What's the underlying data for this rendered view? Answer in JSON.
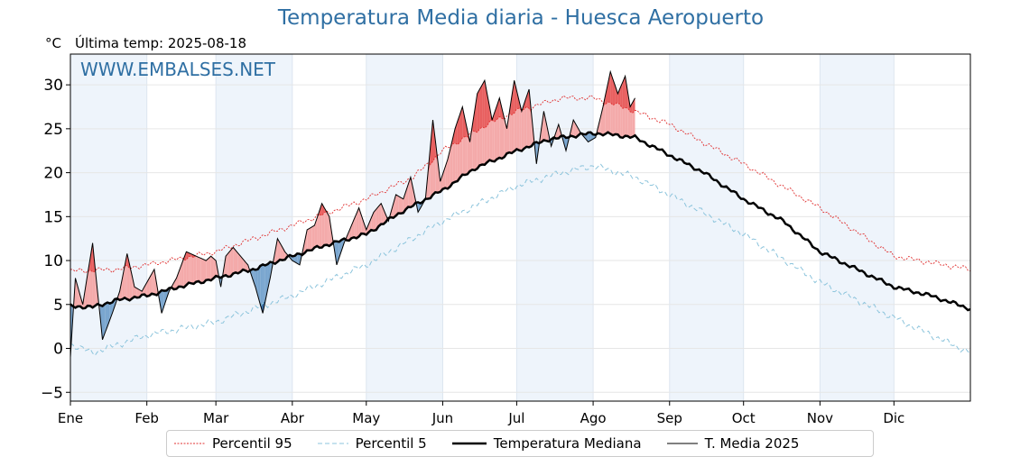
{
  "title": "Temperatura Media diaria - Huesca Aeropuerto",
  "unit": "°C",
  "subtitle": "Última temp: 2025-08-18",
  "watermark": "WWW.EMBALSES.NET",
  "legend": {
    "p95": "Percentil 95",
    "p5": "Percentil 5",
    "median": "Temperatura Mediana",
    "current": "T. Media 2025"
  },
  "colors": {
    "title": "#2f6fa3",
    "p95": "#e03030",
    "p5": "#8cc4dc",
    "median": "#000000",
    "current": "#000000",
    "above_fill": "#f4aaaa",
    "above_p95_fill": "#e86060",
    "below_fill": "#7aa6cf",
    "below_p5_fill": "#3a6ea5",
    "month_band": "#eef4fb"
  },
  "chart_data": {
    "type": "line",
    "ylim": [
      -6,
      33.5
    ],
    "yticks": [
      -5,
      0,
      5,
      10,
      15,
      20,
      25,
      30
    ],
    "ytick_labels": [
      "−5",
      "0",
      "5",
      "10",
      "15",
      "20",
      "25",
      "30"
    ],
    "xlim": [
      1,
      366
    ],
    "months": [
      "Ene",
      "Feb",
      "Mar",
      "Abr",
      "May",
      "Jun",
      "Jul",
      "Ago",
      "Sep",
      "Oct",
      "Nov",
      "Dic"
    ],
    "month_start_days": [
      1,
      32,
      60,
      91,
      121,
      152,
      182,
      213,
      244,
      274,
      305,
      335
    ],
    "median_keypoints": {
      "day": [
        1,
        10,
        20,
        32,
        45,
        60,
        75,
        91,
        105,
        121,
        135,
        152,
        165,
        182,
        195,
        213,
        222,
        230,
        244,
        258,
        274,
        290,
        305,
        320,
        335,
        350,
        366
      ],
      "value": [
        4.8,
        4.7,
        5.5,
        6.0,
        7.0,
        8.0,
        9.0,
        10.5,
        11.8,
        13.0,
        15.5,
        18.0,
        20.5,
        22.5,
        23.8,
        24.5,
        24.3,
        24.0,
        22.0,
        20.0,
        17.0,
        14.5,
        11.0,
        9.0,
        7.0,
        6.0,
        4.5
      ]
    },
    "p95_keypoints": {
      "day": [
        1,
        20,
        32,
        60,
        91,
        121,
        140,
        152,
        170,
        182,
        200,
        213,
        225,
        244,
        274,
        305,
        335,
        366
      ],
      "value": [
        8.8,
        9.0,
        9.5,
        11.0,
        14.0,
        17.0,
        19.5,
        22.5,
        25.5,
        27.0,
        28.5,
        28.5,
        27.5,
        25.5,
        21.0,
        16.0,
        10.5,
        9.0
      ]
    },
    "p5_keypoints": {
      "day": [
        1,
        10,
        32,
        60,
        91,
        121,
        152,
        182,
        200,
        213,
        230,
        244,
        274,
        305,
        335,
        366
      ],
      "value": [
        0.5,
        -0.5,
        1.5,
        3.0,
        6.0,
        9.5,
        14.5,
        18.5,
        20.0,
        20.8,
        19.5,
        17.5,
        13.0,
        7.5,
        3.5,
        -0.5
      ]
    },
    "current_2025_keypoints": {
      "day": [
        1,
        3,
        6,
        10,
        14,
        18,
        21,
        24,
        27,
        30,
        35,
        38,
        41,
        44,
        48,
        52,
        56,
        58,
        60,
        62,
        64,
        67,
        70,
        73,
        76,
        79,
        82,
        85,
        88,
        91,
        94,
        97,
        100,
        103,
        106,
        109,
        112,
        115,
        118,
        121,
        124,
        127,
        130,
        133,
        136,
        139,
        142,
        145,
        148,
        151,
        154,
        157,
        160,
        163,
        166,
        169,
        172,
        175,
        178,
        181,
        184,
        187,
        190,
        193,
        196,
        199,
        202,
        205,
        208,
        211,
        214,
        217,
        220,
        223,
        226,
        228,
        230
      ],
      "value": [
        -1.0,
        8.0,
        5.0,
        12.0,
        1.0,
        4.0,
        6.5,
        10.8,
        7.0,
        6.5,
        9.0,
        4.0,
        6.5,
        8.0,
        11.0,
        10.5,
        10.0,
        10.5,
        10.0,
        7.0,
        10.5,
        11.5,
        10.5,
        9.5,
        7.0,
        4.0,
        8.0,
        12.5,
        11.0,
        10.0,
        9.5,
        13.5,
        14.0,
        16.5,
        15.0,
        9.5,
        12.0,
        14.0,
        16.0,
        13.5,
        15.5,
        16.5,
        14.5,
        17.5,
        17.0,
        19.5,
        15.5,
        17.0,
        26.0,
        19.0,
        21.5,
        25.0,
        27.5,
        23.5,
        29.0,
        30.5,
        26.0,
        28.5,
        25.0,
        30.5,
        27.0,
        29.5,
        21.0,
        27.0,
        23.0,
        25.5,
        22.5,
        26.0,
        24.5,
        23.5,
        24.0,
        27.5,
        31.5,
        29.0,
        31.0,
        27.5,
        28.5
      ]
    }
  }
}
